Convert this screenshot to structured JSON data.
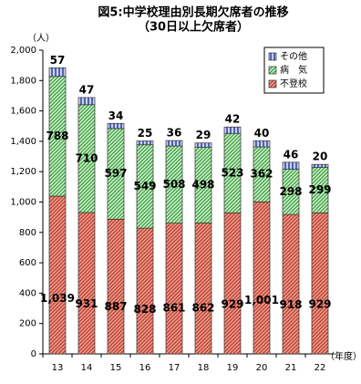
{
  "chart_data": {
    "type": "stacked_bar",
    "title": "図5:中学校理由別長期欠席者の推移",
    "subtitle": "（30日以上欠席者）",
    "y_unit": "（人）",
    "x_unit": "（年度）",
    "categories": [
      "13",
      "14",
      "15",
      "16",
      "17",
      "18",
      "19",
      "20",
      "21",
      "22"
    ],
    "series": [
      {
        "name": "不登校",
        "color": "#c0392b",
        "values": [
          1039,
          931,
          887,
          828,
          861,
          862,
          929,
          1001,
          918,
          929
        ],
        "value_labels": [
          "1,039",
          "931",
          "887",
          "828",
          "861",
          "862",
          "929",
          "1,001",
          "918",
          "929"
        ]
      },
      {
        "name": "病　気",
        "color": "#2e9e3a",
        "values": [
          788,
          710,
          597,
          549,
          508,
          498,
          523,
          362,
          298,
          299
        ]
      },
      {
        "name": "その他",
        "color": "#2c3e9e",
        "values": [
          57,
          47,
          34,
          25,
          36,
          29,
          42,
          40,
          46,
          20
        ]
      }
    ],
    "ylim": [
      0,
      2000
    ],
    "yticks": [
      0,
      200,
      400,
      600,
      800,
      {
        "value": 1000,
        "label": "1,000"
      },
      {
        "value": 1200,
        "label": "1,200"
      },
      {
        "value": 1400,
        "label": "1,400"
      },
      {
        "value": 1600,
        "label": "1,600"
      },
      {
        "value": 1800,
        "label": "1,800"
      },
      {
        "value": 2000,
        "label": "2,000"
      }
    ],
    "grid": false,
    "legend": "upper right"
  }
}
